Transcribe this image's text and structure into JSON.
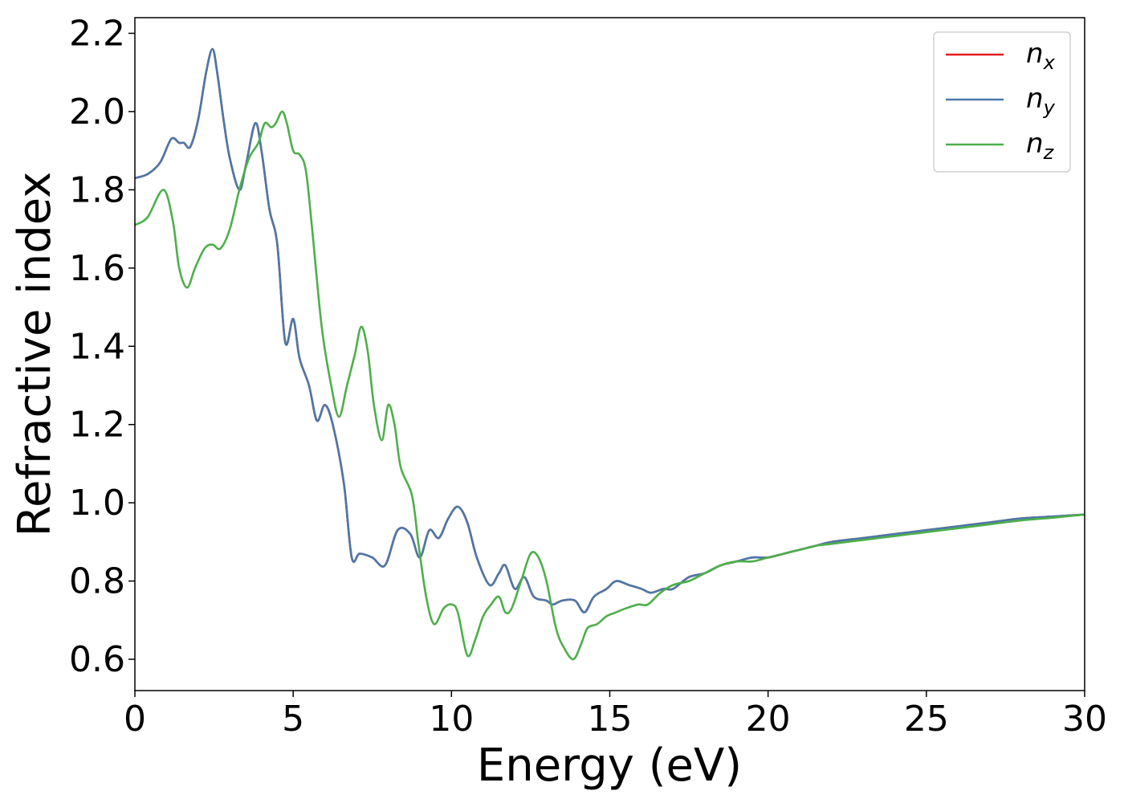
{
  "chart_data": {
    "type": "line",
    "xlabel": "Energy (eV)",
    "ylabel": "Refractive index",
    "xlim": [
      0,
      30
    ],
    "ylim": [
      0.52,
      2.24
    ],
    "xticks": [
      "0",
      "5",
      "10",
      "15",
      "20",
      "25",
      "30"
    ],
    "yticks": [
      "0.6",
      "0.8",
      "1.0",
      "1.2",
      "1.4",
      "1.6",
      "1.8",
      "2.0",
      "2.2"
    ],
    "grid": false,
    "legend_position": "top-right",
    "series": [
      {
        "name": "n",
        "subscript": "x",
        "color": "#e41a1c",
        "points": [
          [
            0,
            1.83
          ],
          [
            0.4,
            1.84
          ],
          [
            0.8,
            1.87
          ],
          [
            1.15,
            1.93
          ],
          [
            1.4,
            1.92
          ],
          [
            1.55,
            1.92
          ],
          [
            1.75,
            1.91
          ],
          [
            2.0,
            1.98
          ],
          [
            2.25,
            2.1
          ],
          [
            2.45,
            2.16
          ],
          [
            2.6,
            2.1
          ],
          [
            2.8,
            1.98
          ],
          [
            3.0,
            1.88
          ],
          [
            3.3,
            1.8
          ],
          [
            3.5,
            1.86
          ],
          [
            3.8,
            1.97
          ],
          [
            4.0,
            1.9
          ],
          [
            4.25,
            1.75
          ],
          [
            4.5,
            1.66
          ],
          [
            4.75,
            1.41
          ],
          [
            5.0,
            1.47
          ],
          [
            5.2,
            1.37
          ],
          [
            5.5,
            1.3
          ],
          [
            5.75,
            1.21
          ],
          [
            6.0,
            1.25
          ],
          [
            6.25,
            1.2
          ],
          [
            6.6,
            1.05
          ],
          [
            6.85,
            0.86
          ],
          [
            7.1,
            0.87
          ],
          [
            7.5,
            0.86
          ],
          [
            7.9,
            0.84
          ],
          [
            8.3,
            0.93
          ],
          [
            8.7,
            0.92
          ],
          [
            9.0,
            0.86
          ],
          [
            9.3,
            0.93
          ],
          [
            9.6,
            0.91
          ],
          [
            9.9,
            0.96
          ],
          [
            10.2,
            0.99
          ],
          [
            10.5,
            0.95
          ],
          [
            10.8,
            0.86
          ],
          [
            11.2,
            0.79
          ],
          [
            11.5,
            0.82
          ],
          [
            11.7,
            0.84
          ],
          [
            12.0,
            0.78
          ],
          [
            12.3,
            0.81
          ],
          [
            12.6,
            0.76
          ],
          [
            13.0,
            0.75
          ],
          [
            13.2,
            0.74
          ],
          [
            13.5,
            0.75
          ],
          [
            13.9,
            0.75
          ],
          [
            14.2,
            0.72
          ],
          [
            14.5,
            0.76
          ],
          [
            14.9,
            0.78
          ],
          [
            15.2,
            0.8
          ],
          [
            15.6,
            0.79
          ],
          [
            16.0,
            0.78
          ],
          [
            16.3,
            0.77
          ],
          [
            16.7,
            0.78
          ],
          [
            17.0,
            0.78
          ],
          [
            17.5,
            0.81
          ],
          [
            18.0,
            0.82
          ],
          [
            18.5,
            0.84
          ],
          [
            19.0,
            0.85
          ],
          [
            19.5,
            0.86
          ],
          [
            20.0,
            0.86
          ],
          [
            20.5,
            0.87
          ],
          [
            21.0,
            0.88
          ],
          [
            21.5,
            0.89
          ],
          [
            22.0,
            0.9
          ],
          [
            23.0,
            0.91
          ],
          [
            24.0,
            0.92
          ],
          [
            25.0,
            0.93
          ],
          [
            26.0,
            0.94
          ],
          [
            27.0,
            0.95
          ],
          [
            28.0,
            0.96
          ],
          [
            29.0,
            0.965
          ],
          [
            30.0,
            0.97
          ]
        ]
      },
      {
        "name": "n",
        "subscript": "y",
        "color": "#4a79a8",
        "points": [
          [
            0,
            1.83
          ],
          [
            0.4,
            1.84
          ],
          [
            0.8,
            1.87
          ],
          [
            1.15,
            1.93
          ],
          [
            1.4,
            1.92
          ],
          [
            1.55,
            1.92
          ],
          [
            1.75,
            1.91
          ],
          [
            2.0,
            1.98
          ],
          [
            2.25,
            2.1
          ],
          [
            2.45,
            2.16
          ],
          [
            2.6,
            2.1
          ],
          [
            2.8,
            1.98
          ],
          [
            3.0,
            1.88
          ],
          [
            3.3,
            1.8
          ],
          [
            3.5,
            1.86
          ],
          [
            3.8,
            1.97
          ],
          [
            4.0,
            1.9
          ],
          [
            4.25,
            1.75
          ],
          [
            4.5,
            1.66
          ],
          [
            4.75,
            1.41
          ],
          [
            5.0,
            1.47
          ],
          [
            5.2,
            1.37
          ],
          [
            5.5,
            1.3
          ],
          [
            5.75,
            1.21
          ],
          [
            6.0,
            1.25
          ],
          [
            6.25,
            1.2
          ],
          [
            6.6,
            1.05
          ],
          [
            6.85,
            0.86
          ],
          [
            7.1,
            0.87
          ],
          [
            7.5,
            0.86
          ],
          [
            7.9,
            0.84
          ],
          [
            8.3,
            0.93
          ],
          [
            8.7,
            0.92
          ],
          [
            9.0,
            0.86
          ],
          [
            9.3,
            0.93
          ],
          [
            9.6,
            0.91
          ],
          [
            9.9,
            0.96
          ],
          [
            10.2,
            0.99
          ],
          [
            10.5,
            0.95
          ],
          [
            10.8,
            0.86
          ],
          [
            11.2,
            0.79
          ],
          [
            11.5,
            0.82
          ],
          [
            11.7,
            0.84
          ],
          [
            12.0,
            0.78
          ],
          [
            12.3,
            0.81
          ],
          [
            12.6,
            0.76
          ],
          [
            13.0,
            0.75
          ],
          [
            13.2,
            0.74
          ],
          [
            13.5,
            0.75
          ],
          [
            13.9,
            0.75
          ],
          [
            14.2,
            0.72
          ],
          [
            14.5,
            0.76
          ],
          [
            14.9,
            0.78
          ],
          [
            15.2,
            0.8
          ],
          [
            15.6,
            0.79
          ],
          [
            16.0,
            0.78
          ],
          [
            16.3,
            0.77
          ],
          [
            16.7,
            0.78
          ],
          [
            17.0,
            0.78
          ],
          [
            17.5,
            0.81
          ],
          [
            18.0,
            0.82
          ],
          [
            18.5,
            0.84
          ],
          [
            19.0,
            0.85
          ],
          [
            19.5,
            0.86
          ],
          [
            20.0,
            0.86
          ],
          [
            20.5,
            0.87
          ],
          [
            21.0,
            0.88
          ],
          [
            21.5,
            0.89
          ],
          [
            22.0,
            0.9
          ],
          [
            23.0,
            0.91
          ],
          [
            24.0,
            0.92
          ],
          [
            25.0,
            0.93
          ],
          [
            26.0,
            0.94
          ],
          [
            27.0,
            0.95
          ],
          [
            28.0,
            0.96
          ],
          [
            29.0,
            0.965
          ],
          [
            30.0,
            0.97
          ]
        ]
      },
      {
        "name": "n",
        "subscript": "z",
        "color": "#4daf4a",
        "points": [
          [
            0,
            1.71
          ],
          [
            0.4,
            1.73
          ],
          [
            0.9,
            1.8
          ],
          [
            1.2,
            1.72
          ],
          [
            1.4,
            1.6
          ],
          [
            1.65,
            1.55
          ],
          [
            1.9,
            1.6
          ],
          [
            2.2,
            1.65
          ],
          [
            2.45,
            1.66
          ],
          [
            2.7,
            1.65
          ],
          [
            3.0,
            1.7
          ],
          [
            3.3,
            1.8
          ],
          [
            3.6,
            1.88
          ],
          [
            3.9,
            1.92
          ],
          [
            4.1,
            1.97
          ],
          [
            4.3,
            1.96
          ],
          [
            4.45,
            1.97
          ],
          [
            4.65,
            2.0
          ],
          [
            4.8,
            1.97
          ],
          [
            5.0,
            1.9
          ],
          [
            5.2,
            1.89
          ],
          [
            5.4,
            1.85
          ],
          [
            5.6,
            1.7
          ],
          [
            5.9,
            1.45
          ],
          [
            6.2,
            1.3
          ],
          [
            6.45,
            1.22
          ],
          [
            6.7,
            1.3
          ],
          [
            6.95,
            1.38
          ],
          [
            7.15,
            1.45
          ],
          [
            7.35,
            1.39
          ],
          [
            7.55,
            1.25
          ],
          [
            7.8,
            1.16
          ],
          [
            8.0,
            1.25
          ],
          [
            8.2,
            1.2
          ],
          [
            8.4,
            1.09
          ],
          [
            8.75,
            1.02
          ],
          [
            8.95,
            0.9
          ],
          [
            9.2,
            0.76
          ],
          [
            9.45,
            0.69
          ],
          [
            9.75,
            0.73
          ],
          [
            10.0,
            0.74
          ],
          [
            10.2,
            0.72
          ],
          [
            10.5,
            0.61
          ],
          [
            10.75,
            0.65
          ],
          [
            11.0,
            0.71
          ],
          [
            11.25,
            0.74
          ],
          [
            11.5,
            0.76
          ],
          [
            11.7,
            0.72
          ],
          [
            11.9,
            0.73
          ],
          [
            12.2,
            0.8
          ],
          [
            12.5,
            0.87
          ],
          [
            12.75,
            0.86
          ],
          [
            13.0,
            0.8
          ],
          [
            13.3,
            0.68
          ],
          [
            13.55,
            0.63
          ],
          [
            13.85,
            0.6
          ],
          [
            14.1,
            0.64
          ],
          [
            14.3,
            0.68
          ],
          [
            14.6,
            0.69
          ],
          [
            14.9,
            0.71
          ],
          [
            15.2,
            0.72
          ],
          [
            15.5,
            0.73
          ],
          [
            15.9,
            0.74
          ],
          [
            16.2,
            0.74
          ],
          [
            16.6,
            0.77
          ],
          [
            17.0,
            0.79
          ],
          [
            17.5,
            0.8
          ],
          [
            18.0,
            0.82
          ],
          [
            18.5,
            0.84
          ],
          [
            19.0,
            0.85
          ],
          [
            19.5,
            0.85
          ],
          [
            20.0,
            0.86
          ],
          [
            20.5,
            0.87
          ],
          [
            21.0,
            0.88
          ],
          [
            21.5,
            0.89
          ],
          [
            22.0,
            0.895
          ],
          [
            23.0,
            0.905
          ],
          [
            24.0,
            0.915
          ],
          [
            25.0,
            0.925
          ],
          [
            26.0,
            0.935
          ],
          [
            27.0,
            0.945
          ],
          [
            28.0,
            0.955
          ],
          [
            29.0,
            0.962
          ],
          [
            30.0,
            0.97
          ]
        ]
      }
    ]
  }
}
